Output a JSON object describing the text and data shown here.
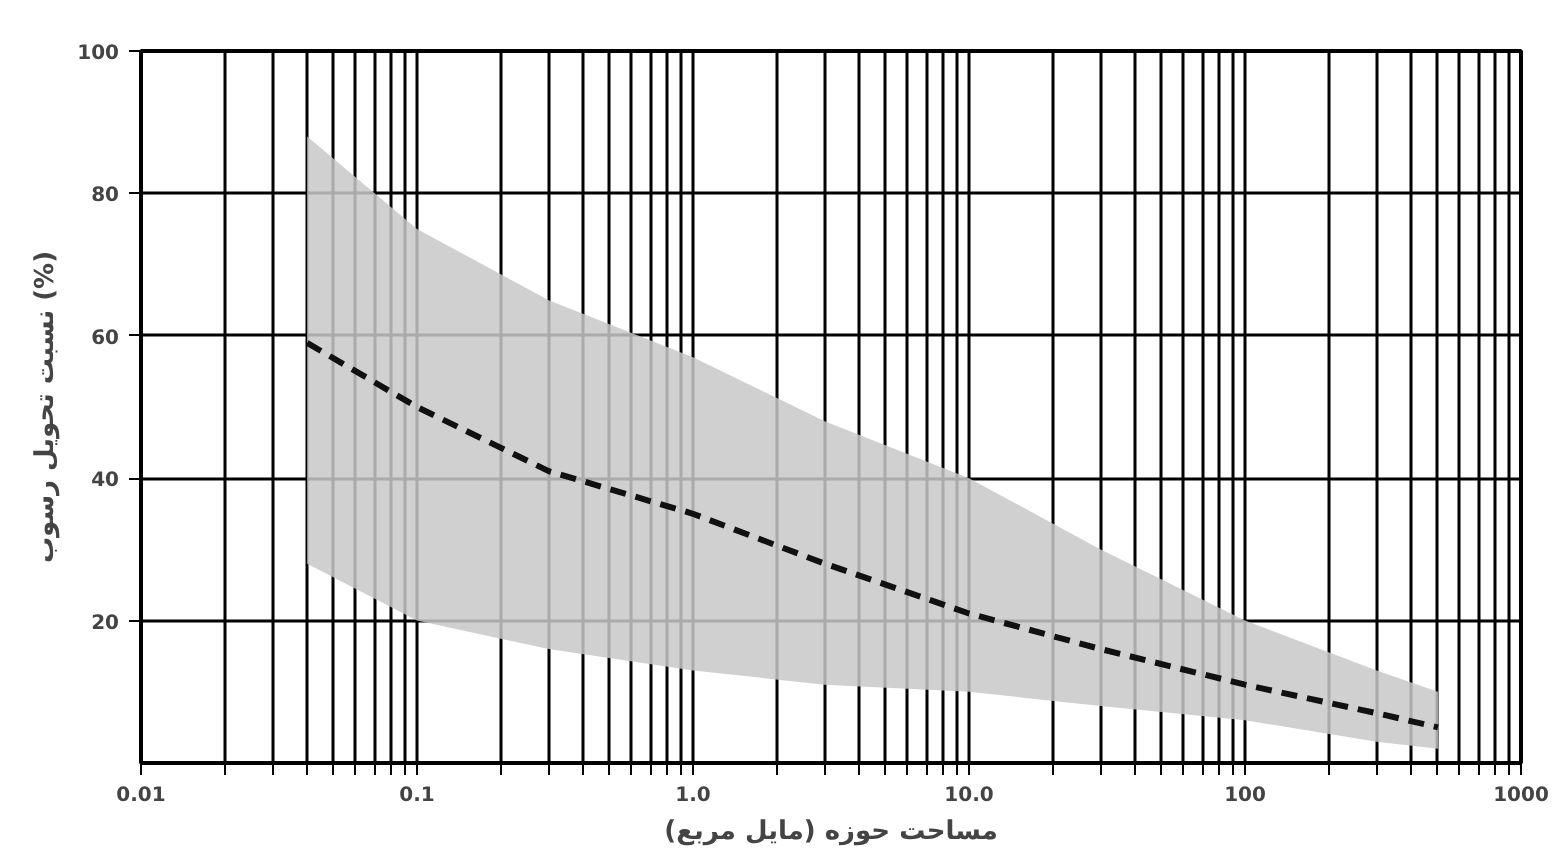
{
  "chart_data": {
    "type": "line",
    "xlabel": "مساحت حوزه (مایل مربع)",
    "ylabel": "نسبت تحویل رسوب (%)",
    "log": "x",
    "grid": true,
    "line_style": "dashed",
    "marker": "none",
    "xlim": [
      0.01,
      1000
    ],
    "ylim": [
      0,
      100
    ],
    "xticks": [
      {
        "value": 0.01,
        "label": "0.01"
      },
      {
        "value": 0.02,
        "label": null
      },
      {
        "value": 0.03,
        "label": null
      },
      {
        "value": 0.04,
        "label": null
      },
      {
        "value": 0.05,
        "label": null
      },
      {
        "value": 0.06,
        "label": null
      },
      {
        "value": 0.07,
        "label": null
      },
      {
        "value": 0.08,
        "label": null
      },
      {
        "value": 0.09,
        "label": null
      },
      {
        "value": 0.1,
        "label": "0.1"
      },
      {
        "value": 0.2,
        "label": null
      },
      {
        "value": 0.3,
        "label": null
      },
      {
        "value": 0.4,
        "label": null
      },
      {
        "value": 0.5,
        "label": null
      },
      {
        "value": 0.6,
        "label": null
      },
      {
        "value": 0.7,
        "label": null
      },
      {
        "value": 0.8,
        "label": null
      },
      {
        "value": 0.9,
        "label": null
      },
      {
        "value": 1,
        "label": "1.0"
      },
      {
        "value": 2,
        "label": null
      },
      {
        "value": 3,
        "label": null
      },
      {
        "value": 4,
        "label": null
      },
      {
        "value": 5,
        "label": null
      },
      {
        "value": 6,
        "label": null
      },
      {
        "value": 7,
        "label": null
      },
      {
        "value": 8,
        "label": null
      },
      {
        "value": 9,
        "label": null
      },
      {
        "value": 10,
        "label": "10.0"
      },
      {
        "value": 20,
        "label": null
      },
      {
        "value": 30,
        "label": null
      },
      {
        "value": 40,
        "label": null
      },
      {
        "value": 50,
        "label": null
      },
      {
        "value": 60,
        "label": null
      },
      {
        "value": 70,
        "label": null
      },
      {
        "value": 80,
        "label": null
      },
      {
        "value": 90,
        "label": null
      },
      {
        "value": 100,
        "label": "100"
      },
      {
        "value": 200,
        "label": null
      },
      {
        "value": 300,
        "label": null
      },
      {
        "value": 400,
        "label": null
      },
      {
        "value": 500,
        "label": null
      },
      {
        "value": 600,
        "label": null
      },
      {
        "value": 700,
        "label": null
      },
      {
        "value": 800,
        "label": null
      },
      {
        "value": 900,
        "label": null
      },
      {
        "value": 1000,
        "label": "1000"
      }
    ],
    "yticks": [
      20,
      40,
      60,
      80,
      100
    ],
    "series": [
      {
        "color": "#111111",
        "x": [
          0.04,
          0.1,
          0.3,
          1,
          3,
          10,
          30,
          100,
          300,
          500
        ],
        "values": [
          59,
          50,
          41,
          35,
          28,
          21,
          16,
          11,
          7,
          5
        ],
        "lower": [
          28,
          20,
          16,
          13,
          11,
          10,
          8,
          6,
          3,
          2
        ],
        "upper": [
          88,
          75,
          65,
          57,
          48,
          40,
          30,
          20,
          13,
          10
        ]
      }
    ]
  }
}
